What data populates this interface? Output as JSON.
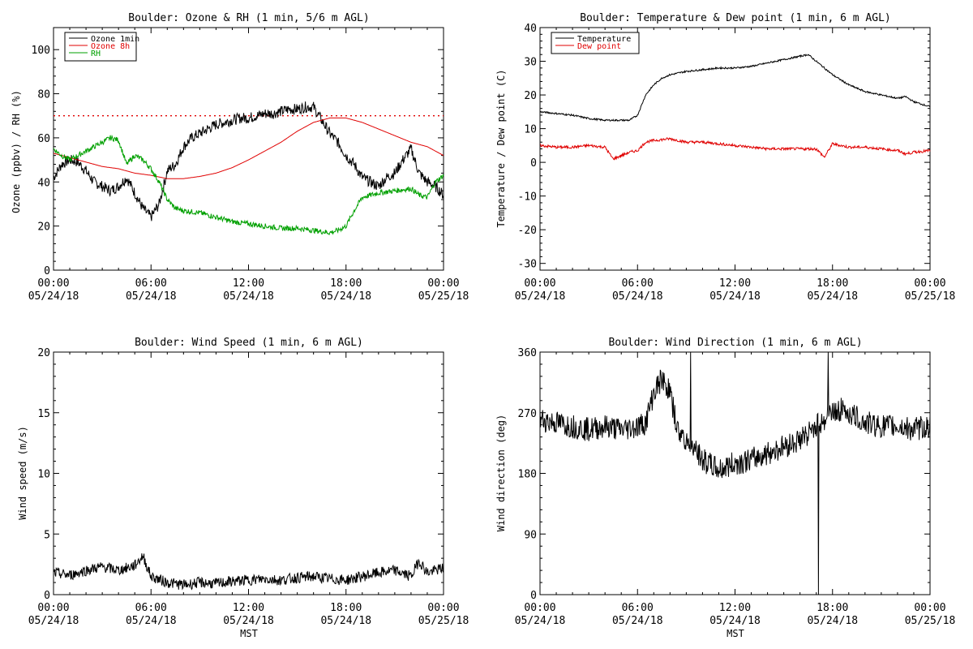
{
  "chart_data": [
    {
      "type": "line",
      "title": "Boulder: Ozone & RH (1 min, 5/6 m AGL)",
      "ylabel": "Ozone (ppbv) / RH (%)",
      "xlabel": "",
      "xlim": [
        0,
        24
      ],
      "ylim": [
        0,
        110
      ],
      "yticks": [
        0,
        20,
        40,
        60,
        80,
        100
      ],
      "xticks": [
        {
          "h": 0,
          "t": "00:00",
          "d": "05/24/18"
        },
        {
          "h": 6,
          "t": "06:00",
          "d": "05/24/18"
        },
        {
          "h": 12,
          "t": "12:00",
          "d": "05/24/18"
        },
        {
          "h": 18,
          "t": "18:00",
          "d": "05/24/18"
        },
        {
          "h": 24,
          "t": "00:00",
          "d": "05/25/18"
        }
      ],
      "reference_line": {
        "y": 70,
        "color": "#e00000",
        "style": "dotted"
      },
      "legend": {
        "position": "top-left",
        "entries": [
          {
            "label": "Ozone 1min",
            "color": "#000000"
          },
          {
            "label": "Ozone 8h",
            "color": "#e00000"
          },
          {
            "label": "RH",
            "color": "#00a000"
          }
        ]
      },
      "series": [
        {
          "name": "Ozone 1min",
          "color": "#000000",
          "noise": 2.5,
          "x": [
            0,
            0.5,
            1,
            1.5,
            2,
            2.5,
            3,
            3.5,
            4,
            4.5,
            5,
            5.5,
            6,
            6.5,
            7,
            7.5,
            8,
            8.5,
            9,
            9.5,
            10,
            10.5,
            11,
            11.5,
            12,
            12.5,
            13,
            13.5,
            14,
            14.5,
            15,
            15.5,
            16,
            16.5,
            17,
            17.5,
            18,
            18.5,
            19,
            19.5,
            20,
            20.5,
            21,
            21.5,
            22,
            22.5,
            23,
            23.5,
            24
          ],
          "y": [
            42,
            48,
            50,
            49,
            45,
            40,
            38,
            36,
            38,
            42,
            35,
            28,
            24,
            30,
            45,
            48,
            56,
            60,
            62,
            64,
            66,
            67,
            68,
            69,
            69,
            70,
            71,
            71,
            72,
            73,
            73,
            74,
            74,
            68,
            62,
            58,
            52,
            48,
            42,
            40,
            38,
            42,
            44,
            50,
            55,
            44,
            40,
            38,
            34
          ]
        },
        {
          "name": "Ozone 8h",
          "color": "#e00000",
          "noise": 0,
          "x": [
            0,
            1,
            2,
            3,
            4,
            5,
            6,
            7,
            8,
            9,
            10,
            11,
            12,
            13,
            14,
            15,
            16,
            17,
            18,
            19,
            20,
            21,
            22,
            23,
            24
          ],
          "y": [
            53,
            51,
            49,
            47,
            46,
            44,
            43,
            41.5,
            41.5,
            42.5,
            44,
            46.5,
            50,
            54,
            58,
            63,
            67,
            69,
            69,
            67,
            64,
            61,
            58,
            56,
            52
          ]
        },
        {
          "name": "RH",
          "color": "#00a000",
          "noise": 1.2,
          "x": [
            0,
            0.5,
            1,
            1.5,
            2,
            2.5,
            3,
            3.5,
            4,
            4.5,
            5,
            5.5,
            6,
            6.5,
            7,
            7.5,
            8,
            9,
            10,
            11,
            12,
            13,
            14,
            15,
            16,
            17,
            17.5,
            18,
            18.5,
            19,
            19.5,
            20,
            21,
            22,
            22.5,
            23,
            23.5,
            24
          ],
          "y": [
            55,
            52,
            50,
            52,
            54,
            56,
            58,
            60,
            59,
            48,
            52,
            50,
            46,
            40,
            32,
            28,
            27,
            26,
            24,
            22,
            21,
            20,
            19,
            19,
            18,
            17,
            18,
            20,
            27,
            33,
            34,
            35,
            36,
            37,
            34,
            33,
            40,
            43
          ]
        }
      ]
    },
    {
      "type": "line",
      "title": "Boulder: Temperature & Dew point (1 min, 6 m AGL)",
      "ylabel": "Temperature / Dew point (C)",
      "xlabel": "",
      "xlim": [
        0,
        24
      ],
      "ylim": [
        -32,
        40
      ],
      "yticks": [
        -30,
        -20,
        -10,
        0,
        10,
        20,
        30,
        40
      ],
      "xticks": [
        {
          "h": 0,
          "t": "00:00",
          "d": "05/24/18"
        },
        {
          "h": 6,
          "t": "06:00",
          "d": "05/24/18"
        },
        {
          "h": 12,
          "t": "12:00",
          "d": "05/24/18"
        },
        {
          "h": 18,
          "t": "18:00",
          "d": "05/24/18"
        },
        {
          "h": 24,
          "t": "00:00",
          "d": "05/25/18"
        }
      ],
      "legend": {
        "position": "top-left",
        "entries": [
          {
            "label": "Temperature",
            "color": "#000000"
          },
          {
            "label": "Dew point",
            "color": "#e00000"
          }
        ]
      },
      "series": [
        {
          "name": "Temperature",
          "color": "#000000",
          "noise": 0.25,
          "x": [
            0,
            1,
            2,
            3,
            4,
            5,
            5.5,
            6,
            6.5,
            7,
            7.5,
            8,
            9,
            10,
            11,
            12,
            13,
            14,
            15,
            16,
            16.5,
            17,
            18,
            19,
            20,
            21,
            22,
            22.5,
            23,
            24
          ],
          "y": [
            15,
            14.5,
            14,
            13,
            12.5,
            12.5,
            12.5,
            14,
            20,
            23,
            25,
            26,
            27,
            27.5,
            28,
            28,
            28.5,
            29.5,
            30.5,
            31.5,
            32,
            30,
            26,
            23,
            21,
            20,
            19,
            19.5,
            18,
            16.5
          ]
        },
        {
          "name": "Dew point",
          "color": "#e00000",
          "noise": 0.4,
          "x": [
            0,
            1,
            2,
            3,
            4,
            4.5,
            5,
            5.5,
            6,
            6.5,
            7,
            8,
            9,
            10,
            11,
            12,
            13,
            14,
            15,
            16,
            17,
            17.5,
            18,
            18.5,
            19,
            20,
            21,
            22,
            22.5,
            23,
            24
          ],
          "y": [
            5,
            4.5,
            4.5,
            5,
            4.5,
            1,
            2,
            3,
            3.5,
            6,
            6.5,
            7,
            6,
            6,
            5.5,
            5,
            4.5,
            4,
            4,
            4,
            4,
            1.5,
            5.5,
            5,
            4.5,
            4.5,
            4,
            3.5,
            2.5,
            3,
            3.5
          ]
        }
      ]
    },
    {
      "type": "line",
      "title": "Boulder: Wind Speed (1 min, 6 m AGL)",
      "ylabel": "Wind speed (m/s)",
      "xlabel": "MST",
      "xlim": [
        0,
        24
      ],
      "ylim": [
        0,
        20
      ],
      "yticks": [
        0,
        5,
        10,
        15,
        20
      ],
      "xticks": [
        {
          "h": 0,
          "t": "00:00",
          "d": "05/24/18"
        },
        {
          "h": 6,
          "t": "06:00",
          "d": "05/24/18"
        },
        {
          "h": 12,
          "t": "12:00",
          "d": "05/24/18"
        },
        {
          "h": 18,
          "t": "18:00",
          "d": "05/24/18"
        },
        {
          "h": 24,
          "t": "00:00",
          "d": "05/25/18"
        }
      ],
      "series": [
        {
          "name": "",
          "color": "#000000",
          "noise": 0.45,
          "x": [
            0,
            1,
            2,
            3,
            4,
            5,
            5.5,
            6,
            7,
            8,
            9,
            10,
            11,
            12,
            13,
            14,
            15,
            16,
            17,
            18,
            19,
            20,
            21,
            22,
            22.5,
            23,
            24
          ],
          "y": [
            1.8,
            1.6,
            2.0,
            2.3,
            2.0,
            2.4,
            3.2,
            1.5,
            1.0,
            0.8,
            1.0,
            0.9,
            1.1,
            1.2,
            1.3,
            1.2,
            1.4,
            1.5,
            1.3,
            1.2,
            1.5,
            1.8,
            2.0,
            1.5,
            2.8,
            1.8,
            2.2
          ]
        }
      ]
    },
    {
      "type": "line",
      "title": "Boulder: Wind Direction (1 min, 6 m AGL)",
      "ylabel": "Wind direction (deg)",
      "xlabel": "MST",
      "xlim": [
        0,
        24
      ],
      "ylim": [
        0,
        360
      ],
      "yticks": [
        0,
        90,
        180,
        270,
        360
      ],
      "xticks": [
        {
          "h": 0,
          "t": "00:00",
          "d": "05/24/18"
        },
        {
          "h": 6,
          "t": "06:00",
          "d": "05/24/18"
        },
        {
          "h": 12,
          "t": "12:00",
          "d": "05/24/18"
        },
        {
          "h": 18,
          "t": "18:00",
          "d": "05/24/18"
        },
        {
          "h": 24,
          "t": "00:00",
          "d": "05/25/18"
        }
      ],
      "series": [
        {
          "name": "",
          "color": "#000000",
          "noise": 18,
          "x": [
            0,
            1,
            2,
            3,
            4,
            5,
            6,
            6.5,
            7,
            7.5,
            8,
            8.5,
            9,
            10,
            11,
            12,
            13,
            14,
            15,
            16,
            16.5,
            17,
            17.5,
            18,
            18.5,
            19,
            20,
            21,
            22,
            23,
            24
          ],
          "y": [
            260,
            255,
            250,
            245,
            250,
            245,
            250,
            255,
            300,
            320,
            300,
            240,
            230,
            200,
            185,
            195,
            200,
            210,
            220,
            230,
            240,
            250,
            260,
            270,
            275,
            270,
            255,
            250,
            250,
            245,
            250
          ]
        }
      ]
    }
  ]
}
